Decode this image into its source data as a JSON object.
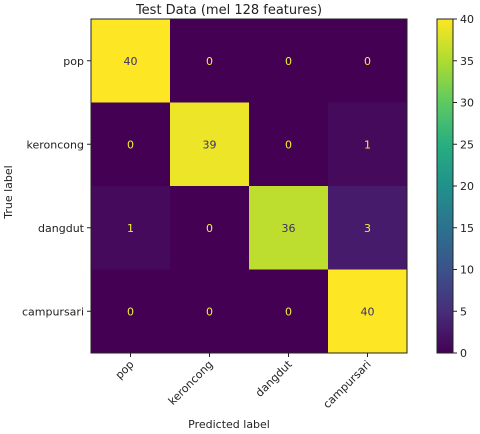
{
  "chart_data": {
    "type": "heatmap",
    "title": "Test Data (mel 128 features)",
    "xlabel": "Predicted label",
    "ylabel": "True label",
    "x_categories": [
      "pop",
      "keroncong",
      "dangdut",
      "campursari"
    ],
    "y_categories": [
      "pop",
      "keroncong",
      "dangdut",
      "campursari"
    ],
    "matrix": [
      [
        40,
        0,
        0,
        0
      ],
      [
        0,
        39,
        0,
        1
      ],
      [
        1,
        0,
        36,
        3
      ],
      [
        0,
        0,
        0,
        40
      ]
    ],
    "colormap": "viridis",
    "vmin": 0,
    "vmax": 40,
    "colorbar_ticks": [
      0,
      5,
      10,
      15,
      20,
      25,
      30,
      35,
      40
    ],
    "text_color_light": "#f0ef3c",
    "text_color_dark": "#3b2f6b"
  }
}
